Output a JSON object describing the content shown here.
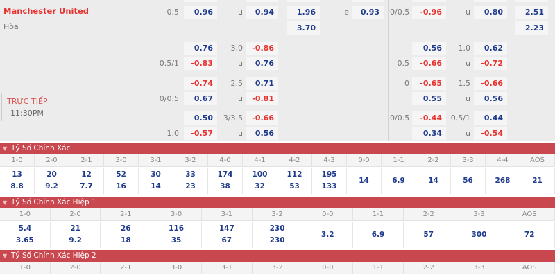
{
  "match": {
    "home_team": "Manchester United",
    "draw_label": "Hòa",
    "status": "TRỰC TIẾP",
    "time": "11:30PM"
  },
  "colors": {
    "positive": "#1f3b8c",
    "negative": "#e8322f",
    "section_header": "#c9474f"
  },
  "odds_rows": [
    [
      "0.5",
      "0.96",
      "u",
      "0.94",
      "1.96",
      "e",
      "0.93",
      "0/0.5",
      "-0.96",
      "u",
      "0.80",
      "2.51"
    ],
    [
      "",
      "",
      "",
      "",
      "3.70",
      "",
      "",
      "",
      "",
      "",
      "",
      "2.23"
    ],
    [
      "",
      "0.76",
      "3.0",
      "-0.86",
      "",
      "",
      "",
      "",
      "0.56",
      "1.0",
      "0.62",
      ""
    ],
    [
      "0.5/1",
      "-0.83",
      "u",
      "0.76",
      "",
      "",
      "",
      "0.5",
      "-0.66",
      "u",
      "-0.72",
      ""
    ],
    [
      "",
      "-0.74",
      "2.5",
      "0.71",
      "",
      "",
      "",
      "0",
      "-0.65",
      "1.5",
      "-0.66",
      ""
    ],
    [
      "0/0.5",
      "0.67",
      "u",
      "-0.81",
      "",
      "",
      "",
      "",
      "0.55",
      "u",
      "0.56",
      ""
    ],
    [
      "",
      "0.50",
      "3/3.5",
      "-0.66",
      "",
      "",
      "",
      "0/0.5",
      "-0.44",
      "0.5/1",
      "0.44",
      ""
    ],
    [
      "1.0",
      "-0.57",
      "u",
      "0.56",
      "",
      "",
      "",
      "",
      "0.34",
      "u",
      "-0.54",
      ""
    ]
  ],
  "sections": [
    {
      "title": "Tỷ Số Chính Xác",
      "headers": [
        "1-0",
        "2-0",
        "2-1",
        "3-0",
        "3-1",
        "3-2",
        "4-0",
        "4-1",
        "4-2",
        "4-3",
        "0-0",
        "1-1",
        "2-2",
        "3-3",
        "4-4",
        "AOS"
      ],
      "values": [
        [
          "13",
          "8.8"
        ],
        [
          "20",
          "9.2"
        ],
        [
          "12",
          "7.7"
        ],
        [
          "52",
          "16"
        ],
        [
          "30",
          "14"
        ],
        [
          "33",
          "23"
        ],
        [
          "174",
          "38"
        ],
        [
          "100",
          "32"
        ],
        [
          "112",
          "53"
        ],
        [
          "195",
          "133"
        ],
        [
          "14"
        ],
        [
          "6.9"
        ],
        [
          "14"
        ],
        [
          "56"
        ],
        [
          "268"
        ],
        [
          "21"
        ]
      ]
    },
    {
      "title": "Tỷ Số Chính Xác Hiệp 1",
      "headers": [
        "1-0",
        "2-0",
        "2-1",
        "3-0",
        "3-1",
        "3-2",
        "0-0",
        "1-1",
        "2-2",
        "3-3",
        "AOS"
      ],
      "values": [
        [
          "5.4",
          "3.65"
        ],
        [
          "21",
          "9.2"
        ],
        [
          "26",
          "18"
        ],
        [
          "116",
          "35"
        ],
        [
          "147",
          "67"
        ],
        [
          "230",
          "230"
        ],
        [
          "3.2"
        ],
        [
          "6.9"
        ],
        [
          "57"
        ],
        [
          "300"
        ],
        [
          "72"
        ]
      ]
    },
    {
      "title": "Tỷ Số Chính Xác Hiệp 2",
      "headers": [
        "1-0",
        "2-0",
        "2-1",
        "3-0",
        "3-1",
        "3-2",
        "0-0",
        "1-1",
        "2-2",
        "3-3",
        "AOS"
      ],
      "values": []
    }
  ]
}
